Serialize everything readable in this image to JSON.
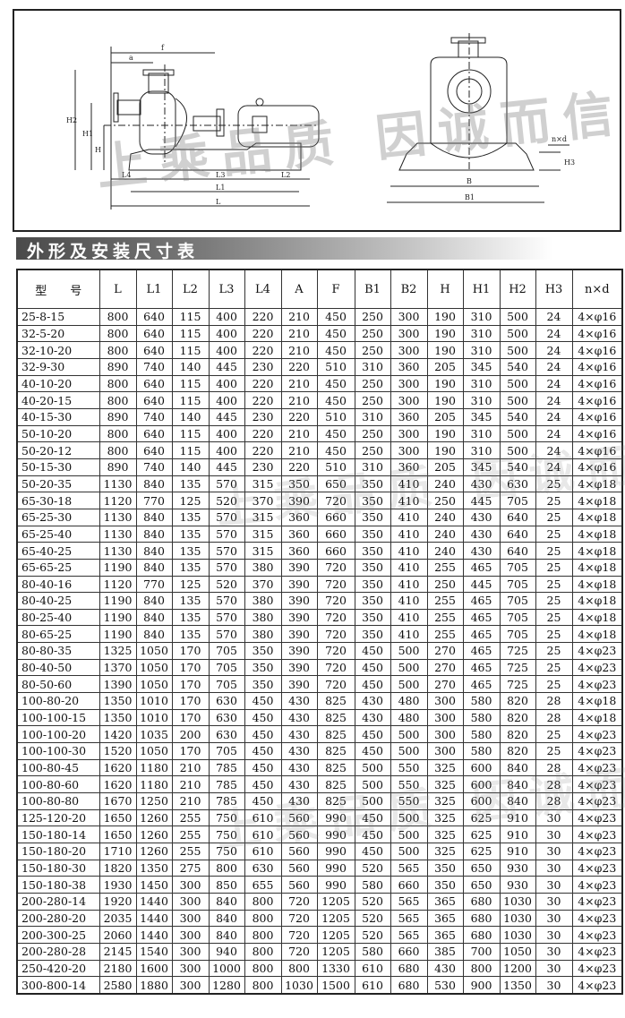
{
  "drawing": {
    "side_labels": [
      "a",
      "f",
      "H2",
      "H1",
      "H",
      "L4",
      "L3",
      "L2",
      "L1",
      "L"
    ],
    "front_labels": [
      "n×d",
      "B",
      "B1",
      "H3"
    ],
    "watermark": "上乘品质 因诚而信"
  },
  "section_title": "外形及安装尺寸表",
  "table": {
    "headers": [
      "型　　号",
      "L",
      "L1",
      "L2",
      "L3",
      "L4",
      "A",
      "F",
      "B1",
      "B2",
      "H",
      "H1",
      "H2",
      "H3",
      "n×d"
    ],
    "rows": [
      [
        "25-8-15",
        "800",
        "640",
        "115",
        "400",
        "220",
        "210",
        "450",
        "250",
        "300",
        "190",
        "310",
        "500",
        "24",
        "4×φ16"
      ],
      [
        "32-5-20",
        "800",
        "640",
        "115",
        "400",
        "220",
        "210",
        "450",
        "250",
        "300",
        "190",
        "310",
        "500",
        "24",
        "4×φ16"
      ],
      [
        "32-10-20",
        "800",
        "640",
        "115",
        "400",
        "220",
        "210",
        "450",
        "250",
        "300",
        "190",
        "310",
        "500",
        "24",
        "4×φ16"
      ],
      [
        "32-9-30",
        "890",
        "740",
        "140",
        "445",
        "230",
        "220",
        "510",
        "310",
        "360",
        "205",
        "345",
        "540",
        "24",
        "4×φ16"
      ],
      [
        "40-10-20",
        "800",
        "640",
        "115",
        "400",
        "220",
        "210",
        "450",
        "250",
        "300",
        "190",
        "310",
        "500",
        "24",
        "4×φ16"
      ],
      [
        "40-20-15",
        "800",
        "640",
        "115",
        "400",
        "220",
        "210",
        "450",
        "250",
        "300",
        "190",
        "310",
        "500",
        "24",
        "4×φ16"
      ],
      [
        "40-15-30",
        "890",
        "740",
        "140",
        "445",
        "230",
        "220",
        "510",
        "310",
        "360",
        "205",
        "345",
        "540",
        "24",
        "4×φ16"
      ],
      [
        "50-10-20",
        "800",
        "640",
        "115",
        "400",
        "220",
        "210",
        "450",
        "250",
        "300",
        "190",
        "310",
        "500",
        "24",
        "4×φ16"
      ],
      [
        "50-20-12",
        "800",
        "640",
        "115",
        "400",
        "220",
        "210",
        "450",
        "250",
        "300",
        "190",
        "310",
        "500",
        "24",
        "4×φ16"
      ],
      [
        "50-15-30",
        "890",
        "740",
        "140",
        "445",
        "230",
        "220",
        "510",
        "310",
        "360",
        "205",
        "345",
        "540",
        "24",
        "4×φ16"
      ],
      [
        "50-20-35",
        "1130",
        "840",
        "135",
        "570",
        "315",
        "350",
        "650",
        "350",
        "410",
        "240",
        "430",
        "630",
        "25",
        "4×φ18"
      ],
      [
        "65-30-18",
        "1120",
        "770",
        "125",
        "520",
        "370",
        "390",
        "720",
        "350",
        "410",
        "250",
        "445",
        "705",
        "25",
        "4×φ18"
      ],
      [
        "65-25-30",
        "1130",
        "840",
        "135",
        "570",
        "315",
        "360",
        "660",
        "350",
        "410",
        "240",
        "430",
        "640",
        "25",
        "4×φ18"
      ],
      [
        "65-25-40",
        "1130",
        "840",
        "135",
        "570",
        "315",
        "360",
        "660",
        "350",
        "410",
        "240",
        "430",
        "640",
        "25",
        "4×φ18"
      ],
      [
        "65-40-25",
        "1130",
        "840",
        "135",
        "570",
        "315",
        "360",
        "660",
        "350",
        "410",
        "240",
        "430",
        "640",
        "25",
        "4×φ18"
      ],
      [
        "65-65-25",
        "1190",
        "840",
        "135",
        "570",
        "380",
        "390",
        "720",
        "350",
        "410",
        "255",
        "465",
        "705",
        "25",
        "4×φ18"
      ],
      [
        "80-40-16",
        "1120",
        "770",
        "125",
        "520",
        "370",
        "390",
        "720",
        "350",
        "410",
        "250",
        "445",
        "705",
        "25",
        "4×φ18"
      ],
      [
        "80-40-25",
        "1190",
        "840",
        "135",
        "570",
        "380",
        "390",
        "720",
        "350",
        "410",
        "255",
        "465",
        "705",
        "25",
        "4×φ18"
      ],
      [
        "80-25-40",
        "1190",
        "840",
        "135",
        "570",
        "380",
        "390",
        "720",
        "350",
        "410",
        "255",
        "465",
        "705",
        "25",
        "4×φ18"
      ],
      [
        "80-65-25",
        "1190",
        "840",
        "135",
        "570",
        "380",
        "390",
        "720",
        "350",
        "410",
        "255",
        "465",
        "705",
        "25",
        "4×φ18"
      ],
      [
        "80-80-35",
        "1325",
        "1050",
        "170",
        "705",
        "350",
        "390",
        "720",
        "450",
        "500",
        "270",
        "465",
        "725",
        "25",
        "4×φ23"
      ],
      [
        "80-40-50",
        "1370",
        "1050",
        "170",
        "705",
        "350",
        "390",
        "720",
        "450",
        "500",
        "270",
        "465",
        "725",
        "25",
        "4×φ23"
      ],
      [
        "80-50-60",
        "1390",
        "1050",
        "170",
        "705",
        "350",
        "390",
        "720",
        "450",
        "500",
        "270",
        "465",
        "725",
        "25",
        "4×φ23"
      ],
      [
        "100-80-20",
        "1350",
        "1010",
        "170",
        "630",
        "450",
        "430",
        "825",
        "430",
        "480",
        "300",
        "580",
        "820",
        "28",
        "4×φ18"
      ],
      [
        "100-100-15",
        "1350",
        "1010",
        "170",
        "630",
        "450",
        "430",
        "825",
        "430",
        "480",
        "300",
        "580",
        "820",
        "28",
        "4×φ18"
      ],
      [
        "100-100-20",
        "1420",
        "1035",
        "200",
        "630",
        "450",
        "430",
        "825",
        "450",
        "500",
        "300",
        "580",
        "820",
        "25",
        "4×φ23"
      ],
      [
        "100-100-30",
        "1520",
        "1050",
        "170",
        "705",
        "450",
        "430",
        "825",
        "450",
        "500",
        "300",
        "580",
        "820",
        "25",
        "4×φ23"
      ],
      [
        "100-80-45",
        "1620",
        "1180",
        "210",
        "785",
        "450",
        "430",
        "825",
        "500",
        "550",
        "325",
        "600",
        "840",
        "28",
        "4×φ23"
      ],
      [
        "100-80-60",
        "1620",
        "1180",
        "210",
        "785",
        "450",
        "430",
        "825",
        "500",
        "550",
        "325",
        "600",
        "840",
        "28",
        "4×φ23"
      ],
      [
        "100-80-80",
        "1670",
        "1250",
        "210",
        "785",
        "450",
        "430",
        "825",
        "500",
        "550",
        "325",
        "600",
        "840",
        "28",
        "4×φ23"
      ],
      [
        "125-120-20",
        "1650",
        "1260",
        "255",
        "750",
        "610",
        "560",
        "990",
        "450",
        "500",
        "325",
        "625",
        "910",
        "30",
        "4×φ23"
      ],
      [
        "150-180-14",
        "1650",
        "1260",
        "255",
        "750",
        "610",
        "560",
        "990",
        "450",
        "500",
        "325",
        "625",
        "910",
        "30",
        "4×φ23"
      ],
      [
        "150-180-20",
        "1710",
        "1260",
        "255",
        "750",
        "610",
        "560",
        "990",
        "450",
        "500",
        "325",
        "625",
        "910",
        "30",
        "4×φ23"
      ],
      [
        "150-180-30",
        "1820",
        "1350",
        "275",
        "800",
        "630",
        "560",
        "990",
        "520",
        "565",
        "350",
        "650",
        "930",
        "30",
        "4×φ23"
      ],
      [
        "150-180-38",
        "1930",
        "1450",
        "300",
        "850",
        "655",
        "560",
        "990",
        "580",
        "660",
        "350",
        "650",
        "930",
        "30",
        "4×φ23"
      ],
      [
        "200-280-14",
        "1920",
        "1440",
        "300",
        "840",
        "800",
        "720",
        "1205",
        "520",
        "565",
        "365",
        "680",
        "1030",
        "30",
        "4×φ23"
      ],
      [
        "200-280-20",
        "2035",
        "1440",
        "300",
        "840",
        "800",
        "720",
        "1205",
        "520",
        "565",
        "365",
        "680",
        "1030",
        "30",
        "4×φ23"
      ],
      [
        "200-300-25",
        "2060",
        "1440",
        "300",
        "840",
        "800",
        "720",
        "1205",
        "520",
        "565",
        "365",
        "680",
        "1030",
        "30",
        "4×φ23"
      ],
      [
        "200-280-28",
        "2145",
        "1540",
        "300",
        "940",
        "800",
        "720",
        "1205",
        "580",
        "660",
        "385",
        "700",
        "1050",
        "30",
        "4×φ23"
      ],
      [
        "250-420-20",
        "2180",
        "1600",
        "300",
        "1000",
        "800",
        "800",
        "1330",
        "610",
        "680",
        "430",
        "800",
        "1200",
        "30",
        "4×φ23"
      ],
      [
        "300-800-14",
        "2580",
        "1880",
        "300",
        "1280",
        "800",
        "1030",
        "1500",
        "610",
        "680",
        "530",
        "900",
        "1350",
        "30",
        "4×φ23"
      ]
    ]
  }
}
